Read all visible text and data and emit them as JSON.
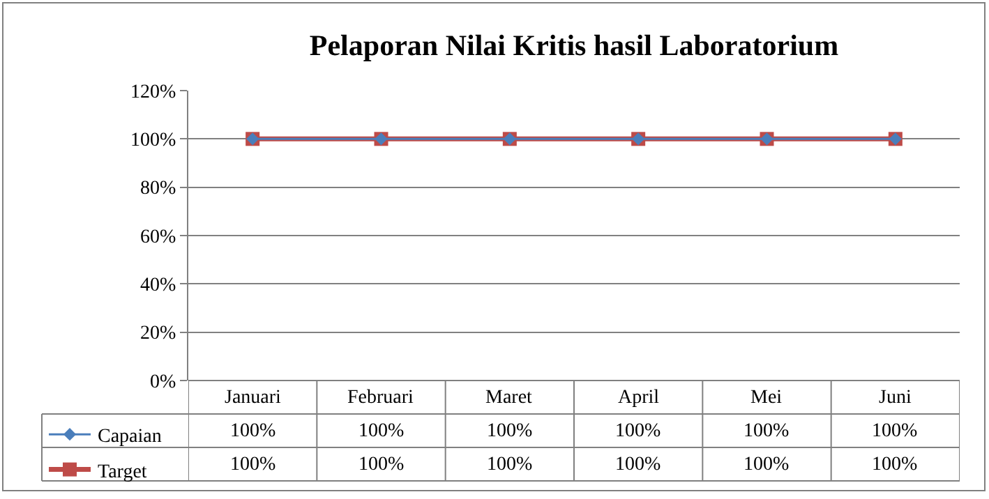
{
  "chart_data": {
    "type": "line",
    "title": "Pelaporan Nilai Kritis hasil Laboratorium",
    "categories": [
      "Januari",
      "Februari",
      "Maret",
      "April",
      "Mei",
      "Juni"
    ],
    "series": [
      {
        "name": "Capaian",
        "color": "#4a7ebb",
        "marker": "diamond",
        "values": [
          100,
          100,
          100,
          100,
          100,
          100
        ],
        "value_labels": [
          "100%",
          "100%",
          "100%",
          "100%",
          "100%",
          "100%"
        ]
      },
      {
        "name": "Target",
        "color": "#be4b48",
        "marker": "square",
        "values": [
          100,
          100,
          100,
          100,
          100,
          100
        ],
        "value_labels": [
          "100%",
          "100%",
          "100%",
          "100%",
          "100%",
          "100%"
        ]
      }
    ],
    "ylim": [
      0,
      120
    ],
    "yticks": [
      {
        "value": 0,
        "label": "0%"
      },
      {
        "value": 20,
        "label": "20%"
      },
      {
        "value": 40,
        "label": "40%"
      },
      {
        "value": 60,
        "label": "60%"
      },
      {
        "value": 80,
        "label": "80%"
      },
      {
        "value": 100,
        "label": "100%"
      },
      {
        "value": 120,
        "label": "120%"
      }
    ],
    "grid": "y",
    "legend": "bottom left",
    "line_style": "solid"
  }
}
